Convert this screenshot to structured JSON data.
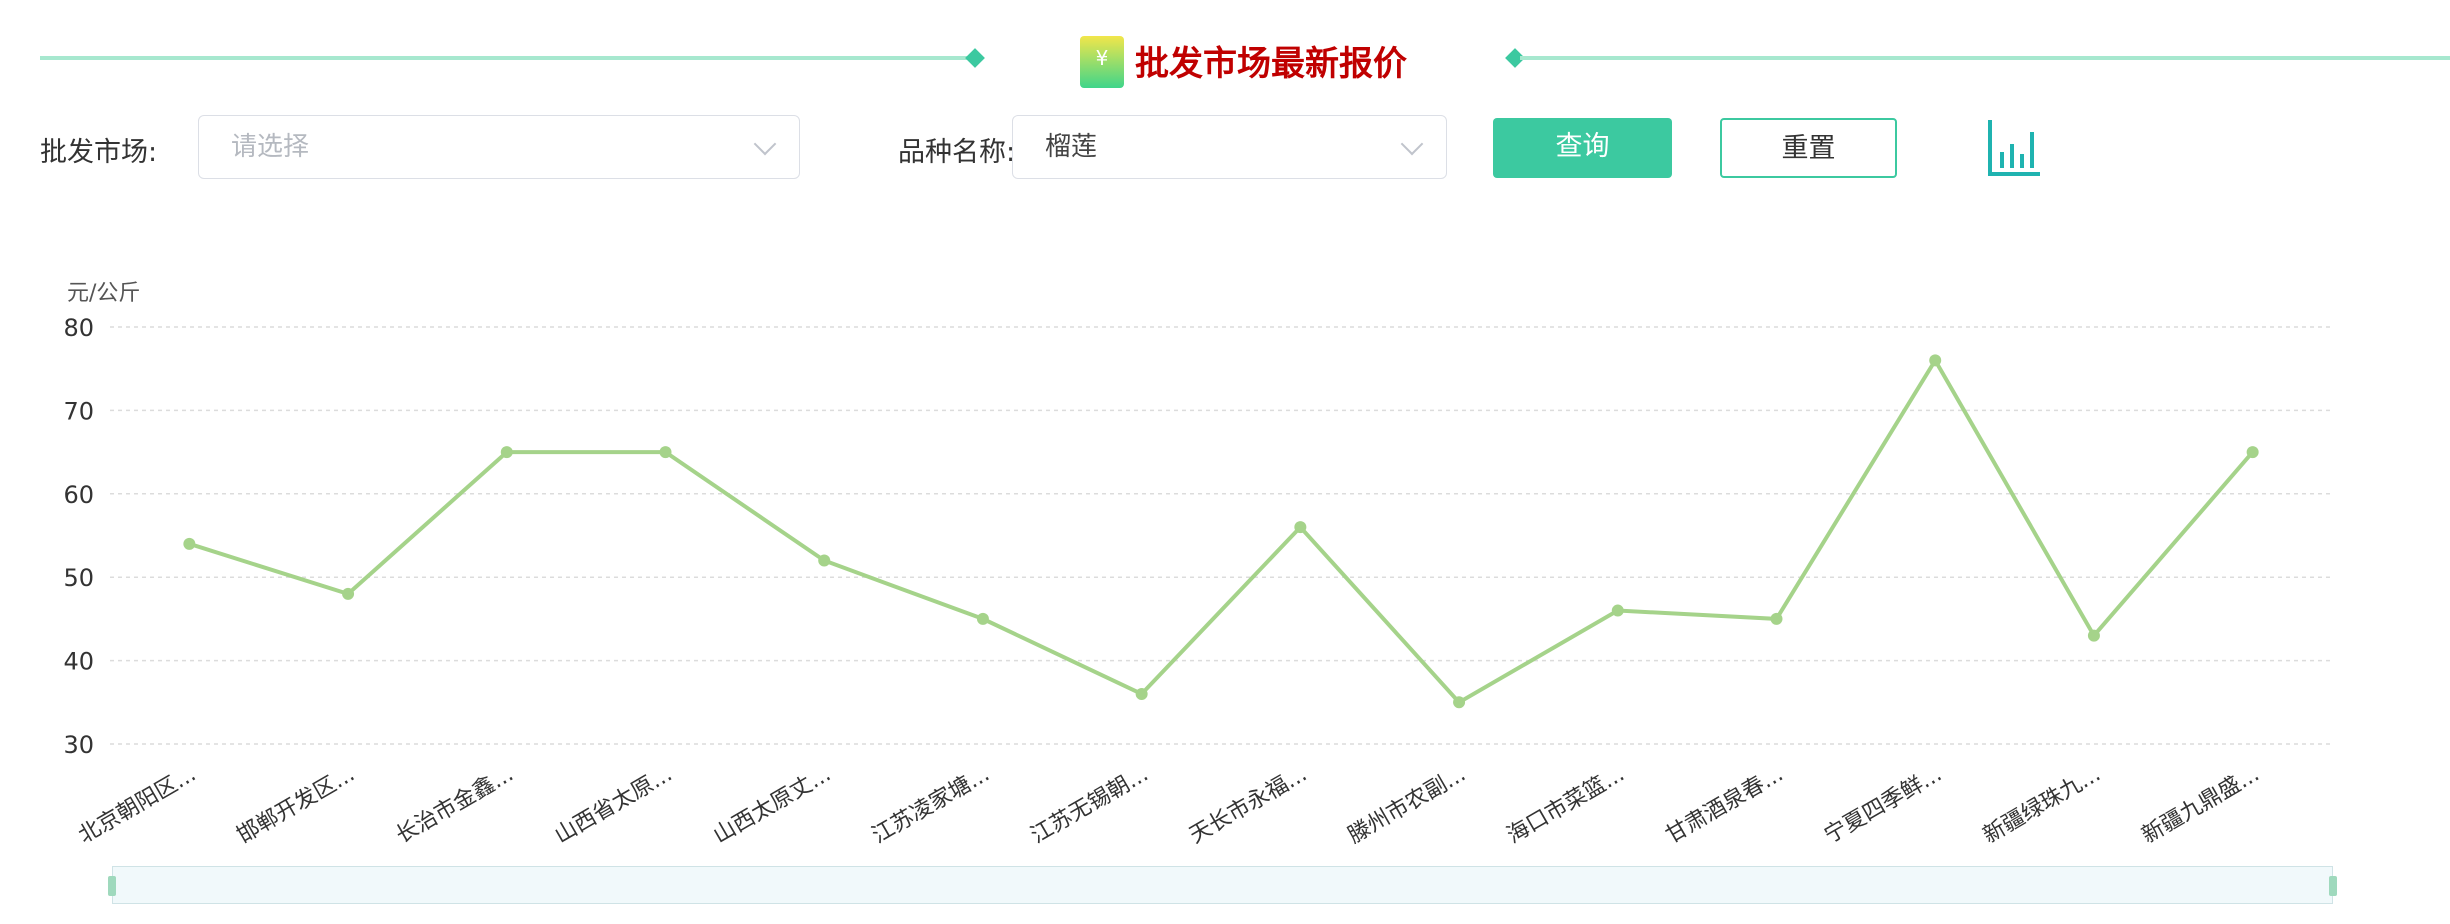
{
  "header": {
    "title": "批发市场最新报价",
    "logo_icon": "yuan-tag-icon",
    "accent": "#3cc9a0",
    "title_color": "#c00000"
  },
  "filters": {
    "market_label": "批发市场:",
    "market_placeholder": "请选择",
    "variety_label": "品种名称:",
    "variety_value": "榴莲",
    "query_label": "查询",
    "reset_label": "重置",
    "chart_toggle_icon": "bar-chart-icon"
  },
  "chart_data": {
    "type": "line",
    "ylabel": "元/公斤",
    "ylim": [
      30,
      80
    ],
    "yticks": [
      30,
      40,
      50,
      60,
      70,
      80
    ],
    "grid": true,
    "line_color": "#a5d38a",
    "categories": [
      "北京朝阳区...",
      "邯郸开发区...",
      "长治市金鑫...",
      "山西省太原...",
      "山西太原丈...",
      "江苏凌家塘...",
      "江苏无锡朝...",
      "天长市永福...",
      "滕州市农副...",
      "海口市菜篮...",
      "甘肃酒泉春...",
      "宁夏四季鲜...",
      "新疆绿珠九...",
      "新疆九鼎盛..."
    ],
    "values": [
      54,
      48,
      65,
      65,
      52,
      45,
      36,
      56,
      35,
      46,
      45,
      76,
      43,
      65
    ]
  }
}
